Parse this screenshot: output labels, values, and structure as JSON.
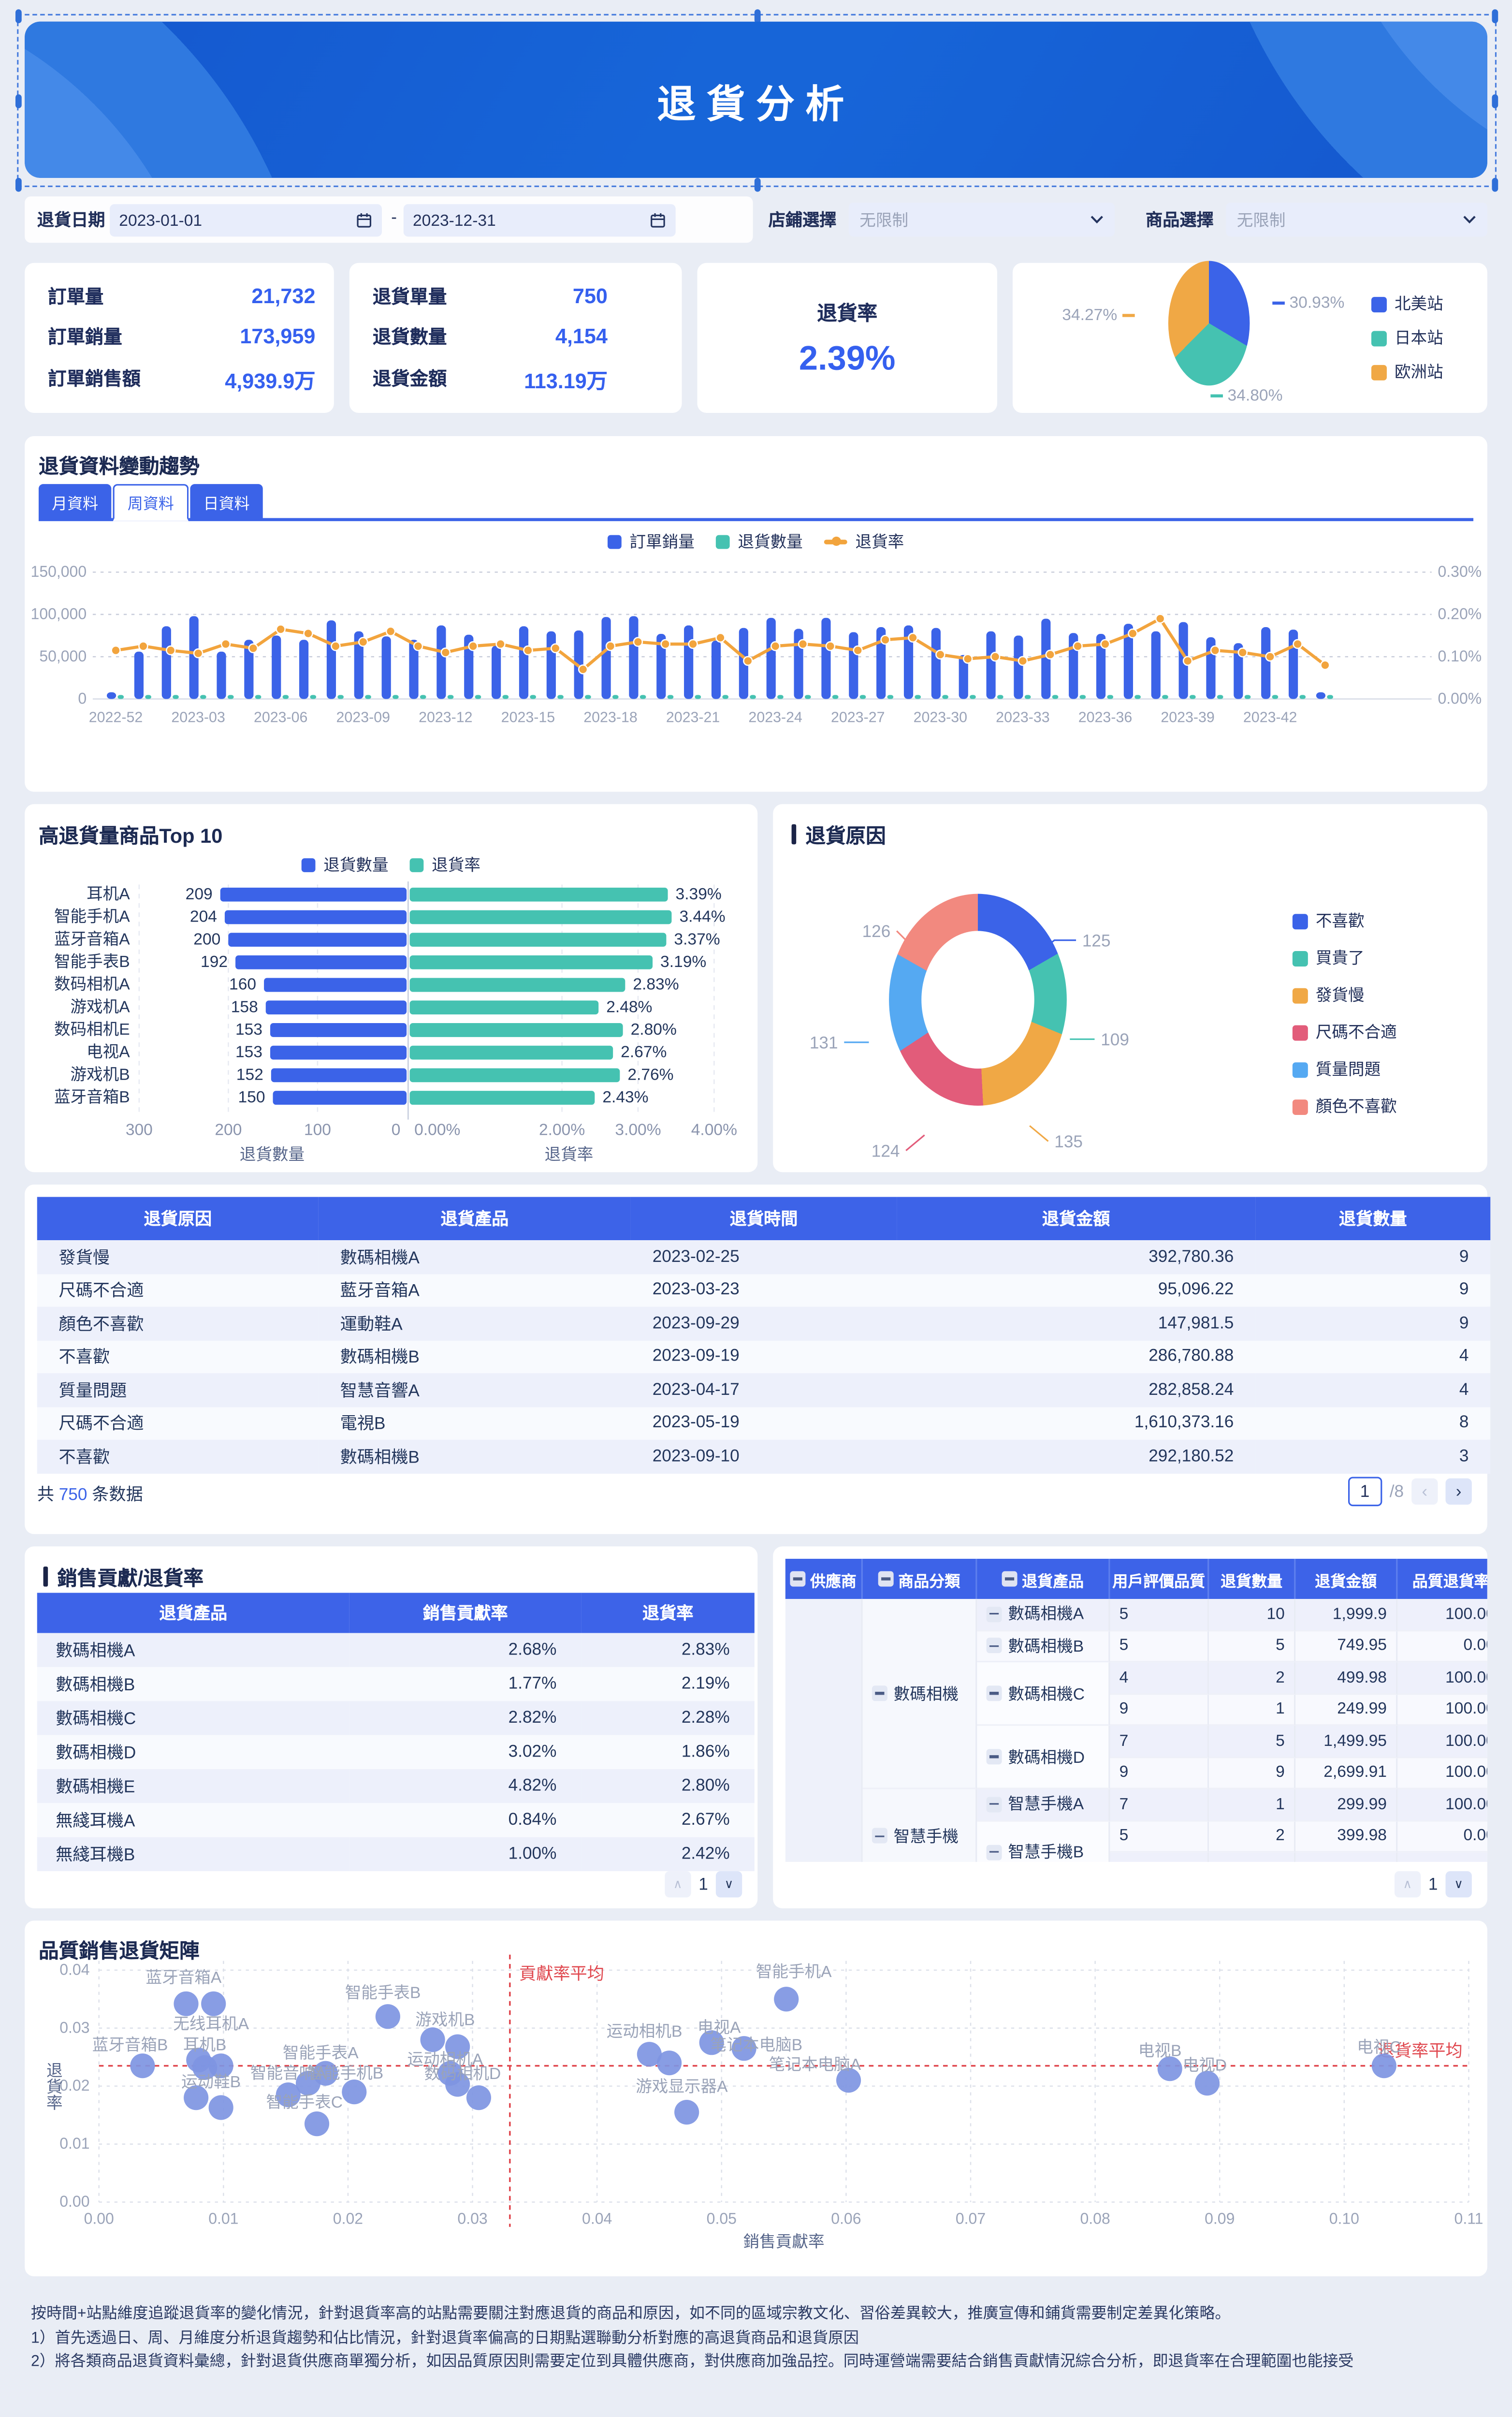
{
  "header": {
    "title": "退貨分析"
  },
  "filters": {
    "date_label": "退貨日期",
    "date_start": "2023-01-01",
    "date_end": "2023-12-31",
    "range_separator": "-",
    "store_label": "店鋪選擇",
    "store_value": "无限制",
    "product_label": "商品選擇",
    "product_value": "无限制"
  },
  "kpi_orders": {
    "rows": [
      {
        "label": "訂單量",
        "value": "21,732"
      },
      {
        "label": "訂單銷量",
        "value": "173,959"
      },
      {
        "label": "訂單銷售額",
        "value": "4,939.9万"
      }
    ]
  },
  "kpi_returns": {
    "rows": [
      {
        "label": "退貨單量",
        "value": "750"
      },
      {
        "label": "退貨數量",
        "value": "4,154"
      },
      {
        "label": "退貨金額",
        "value": "113.19万"
      }
    ]
  },
  "kpi_rate": {
    "label": "退貨率",
    "value": "2.39%"
  },
  "chart_data": [
    {
      "id": "station-pie",
      "type": "pie",
      "labels": [
        "北美站",
        "日本站",
        "欧洲站"
      ],
      "values": [
        30.93,
        34.8,
        34.27
      ],
      "value_labels": [
        "30.93%",
        "34.80%",
        "34.27%"
      ],
      "colors": [
        "#3b63e8",
        "#45c2b1",
        "#f0a845"
      ],
      "legend_position": "right"
    },
    {
      "id": "trend",
      "type": "bar+line",
      "title": "退貨資料變動趨勢",
      "tabs": [
        "月資料",
        "周資料",
        "日資料"
      ],
      "active_tab": "周資料",
      "x": [
        "2022-52",
        "2023-01",
        "2023-02",
        "2023-03",
        "2023-04",
        "2023-05",
        "2023-06",
        "2023-07",
        "2023-08",
        "2023-09",
        "2023-10",
        "2023-11",
        "2023-12",
        "2023-13",
        "2023-14",
        "2023-15",
        "2023-16",
        "2023-17",
        "2023-18",
        "2023-19",
        "2023-20",
        "2023-21",
        "2023-22",
        "2023-23",
        "2023-24",
        "2023-25",
        "2023-26",
        "2023-27",
        "2023-28",
        "2023-29",
        "2023-30",
        "2023-31",
        "2023-32",
        "2023-33",
        "2023-34",
        "2023-35",
        "2023-36",
        "2023-37",
        "2023-38",
        "2023-39",
        "2023-40",
        "2023-41",
        "2023-42",
        "2023-43",
        "2023-44"
      ],
      "tick_every": 3,
      "series": [
        {
          "name": "訂單銷量",
          "type": "bar",
          "color": "#3b63e8",
          "values": [
            8000,
            56000,
            86000,
            98000,
            56000,
            70000,
            75000,
            70000,
            93000,
            80000,
            74000,
            70000,
            87000,
            76000,
            63000,
            86000,
            80000,
            81000,
            97000,
            98000,
            77000,
            87000,
            69000,
            84000,
            96000,
            83000,
            96000,
            79000,
            85000,
            87000,
            84000,
            52000,
            80000,
            75000,
            95000,
            78000,
            77000,
            89000,
            80000,
            91000,
            73000,
            66000,
            85000,
            82000,
            8000
          ]
        },
        {
          "name": "退貨數量",
          "type": "bar",
          "color": "#45c2b1",
          "values": [
            200,
            1900,
            2300,
            2600,
            1500,
            2000,
            2200,
            1900,
            2500,
            2100,
            2000,
            1800,
            2300,
            2000,
            1700,
            2300,
            2100,
            1400,
            2400,
            2600,
            2000,
            2300,
            2400,
            1800,
            2500,
            2200,
            2500,
            2100,
            2300,
            2300,
            2200,
            1400,
            2100,
            2000,
            2500,
            2100,
            2000,
            2400,
            2900,
            1600,
            1900,
            1700,
            1700,
            2300,
            200
          ]
        },
        {
          "name": "退貨率",
          "type": "line",
          "color": "#f2a43d",
          "values": [
            0.115,
            0.125,
            0.115,
            0.108,
            0.13,
            0.12,
            0.165,
            0.155,
            0.125,
            0.135,
            0.16,
            0.125,
            0.11,
            0.125,
            0.13,
            0.115,
            0.12,
            0.07,
            0.125,
            0.135,
            0.13,
            0.13,
            0.145,
            0.09,
            0.125,
            0.13,
            0.125,
            0.115,
            0.14,
            0.145,
            0.105,
            0.095,
            0.1,
            0.09,
            0.105,
            0.125,
            0.13,
            0.155,
            0.19,
            0.09,
            0.115,
            0.11,
            0.1,
            0.13,
            0.08
          ]
        }
      ],
      "y_left": {
        "ticks": [
          "0",
          "50,000",
          "100,000",
          "150,000"
        ],
        "max": 150000
      },
      "y_right": {
        "ticks": [
          "0.00%",
          "0.10%",
          "0.20%",
          "0.30%"
        ],
        "max": 0.3
      }
    },
    {
      "id": "top10",
      "type": "bar",
      "title": "高退貨量商品Top 10",
      "legend": [
        "退貨數量",
        "退貨率"
      ],
      "categories": [
        "耳机A",
        "智能手机A",
        "蓝牙音箱A",
        "智能手表B",
        "数码相机A",
        "游戏机A",
        "数码相机E",
        "电视A",
        "游戏机B",
        "蓝牙音箱B"
      ],
      "qty": [
        209,
        204,
        200,
        192,
        160,
        158,
        153,
        153,
        152,
        150
      ],
      "rate": [
        3.39,
        3.44,
        3.37,
        3.19,
        2.83,
        2.48,
        2.8,
        2.67,
        2.76,
        2.43
      ],
      "rate_labels": [
        "3.39%",
        "3.44%",
        "3.37%",
        "3.19%",
        "2.83%",
        "2.48%",
        "2.80%",
        "2.67%",
        "2.76%",
        "2.43%"
      ],
      "left_axis": {
        "label": "退貨數量",
        "ticks": [
          "300",
          "200",
          "100",
          "0"
        ],
        "max": 300
      },
      "right_axis": {
        "label": "退貨率",
        "ticks": [
          "0.00%",
          "2.00%",
          "3.00%",
          "4.00%"
        ],
        "tick_values": [
          0,
          2,
          3,
          4
        ],
        "max": 4
      },
      "colors": {
        "qty": "#3b63e8",
        "rate": "#45c2b1"
      }
    },
    {
      "id": "reasons",
      "type": "pie",
      "title": "退貨原因",
      "labels": [
        "不喜歡",
        "買貴了",
        "發貨慢",
        "尺碼不合適",
        "質量問題",
        "顏色不喜歡"
      ],
      "values": [
        125,
        109,
        135,
        124,
        131,
        126
      ],
      "value_labels": [
        "125",
        "109",
        "135",
        "124",
        "131",
        "126"
      ],
      "colors": [
        "#3b63e8",
        "#45c2b1",
        "#f0a845",
        "#e25c7a",
        "#55a9f2",
        "#f2897f"
      ],
      "donut": true,
      "legend_position": "right"
    },
    {
      "id": "matrix",
      "type": "scatter",
      "title": "品質銷售退貨矩陣",
      "xlabel": "銷售貢獻率",
      "ylabel": "退貨率",
      "x_ticks": [
        "0.00",
        "0.01",
        "0.02",
        "0.03",
        "0.04",
        "0.05",
        "0.06",
        "0.07",
        "0.08",
        "0.09",
        "0.10",
        "0.11"
      ],
      "y_ticks": [
        "0.00",
        "0.01",
        "0.02",
        "0.03",
        "0.04"
      ],
      "avg_x": {
        "value": 0.033,
        "label": "貢獻率平均"
      },
      "avg_y": {
        "value": 0.0235,
        "label": "退貨率平均"
      },
      "dot_color": "#7e95e2",
      "avg_line_color": "#e0484f",
      "points": [
        {
          "x": 0.0035,
          "y": 0.0235
        },
        {
          "x": 0.008,
          "y": 0.0245
        },
        {
          "x": 0.0085,
          "y": 0.0232
        },
        {
          "x": 0.0098,
          "y": 0.0235
        },
        {
          "x": 0.007,
          "y": 0.0342
        },
        {
          "x": 0.0092,
          "y": 0.0342
        },
        {
          "x": 0.0078,
          "y": 0.018
        },
        {
          "x": 0.0098,
          "y": 0.0163
        },
        {
          "x": 0.0152,
          "y": 0.0185
        },
        {
          "x": 0.0175,
          "y": 0.0135
        },
        {
          "x": 0.0168,
          "y": 0.0205
        },
        {
          "x": 0.0182,
          "y": 0.0222
        },
        {
          "x": 0.0205,
          "y": 0.019
        },
        {
          "x": 0.0232,
          "y": 0.032
        },
        {
          "x": 0.0268,
          "y": 0.028
        },
        {
          "x": 0.0288,
          "y": 0.0268
        },
        {
          "x": 0.0282,
          "y": 0.0222
        },
        {
          "x": 0.0288,
          "y": 0.0203
        },
        {
          "x": 0.0305,
          "y": 0.018
        },
        {
          "x": 0.0442,
          "y": 0.0255
        },
        {
          "x": 0.0458,
          "y": 0.024
        },
        {
          "x": 0.0492,
          "y": 0.0275
        },
        {
          "x": 0.0518,
          "y": 0.0265
        },
        {
          "x": 0.0472,
          "y": 0.0155
        },
        {
          "x": 0.0552,
          "y": 0.035
        },
        {
          "x": 0.0602,
          "y": 0.021
        },
        {
          "x": 0.086,
          "y": 0.023
        },
        {
          "x": 0.089,
          "y": 0.0205
        },
        {
          "x": 0.1032,
          "y": 0.0235
        }
      ],
      "point_labels": [
        {
          "t": "蓝牙音箱A",
          "x": 0.0068,
          "y": 0.0378
        },
        {
          "t": "无线耳机A",
          "x": 0.009,
          "y": 0.0298
        },
        {
          "t": "蓝牙音箱B",
          "x": 0.0025,
          "y": 0.0262
        },
        {
          "t": "耳机B",
          "x": 0.0085,
          "y": 0.0262
        },
        {
          "t": "运动鞋B",
          "x": 0.009,
          "y": 0.0198
        },
        {
          "t": "智能手表C",
          "x": 0.0165,
          "y": 0.0163
        },
        {
          "t": "智能音响A",
          "x": 0.0152,
          "y": 0.0213
        },
        {
          "t": "智能手机B",
          "x": 0.0198,
          "y": 0.0213
        },
        {
          "t": "智能手表A",
          "x": 0.0178,
          "y": 0.0248
        },
        {
          "t": "智能手表B",
          "x": 0.0228,
          "y": 0.0352
        },
        {
          "t": "游戏机B",
          "x": 0.0278,
          "y": 0.0305
        },
        {
          "t": "运动相机A",
          "x": 0.0278,
          "y": 0.0237
        },
        {
          "t": "数码相机D",
          "x": 0.0292,
          "y": 0.0212
        },
        {
          "t": "运动相机B",
          "x": 0.0438,
          "y": 0.0285
        },
        {
          "t": "电视A",
          "x": 0.0498,
          "y": 0.0292
        },
        {
          "t": "笔记本电脑B",
          "x": 0.0528,
          "y": 0.0262
        },
        {
          "t": "笔记本电脑A",
          "x": 0.0575,
          "y": 0.0228
        },
        {
          "t": "游戏显示器A",
          "x": 0.0468,
          "y": 0.019
        },
        {
          "t": "智能手机A",
          "x": 0.0558,
          "y": 0.0388
        },
        {
          "t": "电视B",
          "x": 0.0852,
          "y": 0.0252
        },
        {
          "t": "电视D",
          "x": 0.0888,
          "y": 0.0227
        },
        {
          "t": "电视C",
          "x": 0.1028,
          "y": 0.0258
        }
      ]
    }
  ],
  "detail_table": {
    "columns": [
      "退貨原因",
      "退貨產品",
      "退貨時間",
      "退貨金額",
      "退貨數量"
    ],
    "rows": [
      [
        "發貨慢",
        "數碼相機A",
        "2023-02-25",
        "392,780.36",
        "9"
      ],
      [
        "尺碼不合適",
        "藍牙音箱A",
        "2023-03-23",
        "95,096.22",
        "9"
      ],
      [
        "顏色不喜歡",
        "運動鞋A",
        "2023-09-29",
        "147,981.5",
        "9"
      ],
      [
        "不喜歡",
        "數碼相機B",
        "2023-09-19",
        "286,780.88",
        "4"
      ],
      [
        "質量問題",
        "智慧音響A",
        "2023-04-17",
        "282,858.24",
        "4"
      ],
      [
        "尺碼不合適",
        "電視B",
        "2023-05-19",
        "1,610,373.16",
        "8"
      ],
      [
        "不喜歡",
        "數碼相機B",
        "2023-09-10",
        "292,180.52",
        "3"
      ]
    ],
    "summary_prefix": "共",
    "summary_count": "750",
    "summary_suffix": "条数据",
    "page_value": "1",
    "page_total": "/8"
  },
  "contribution_table": {
    "title": "銷售貢獻/退貨率",
    "columns": [
      "退貨產品",
      "銷售貢獻率",
      "退貨率"
    ],
    "rows": [
      [
        "數碼相機A",
        "2.68%",
        "2.83%"
      ],
      [
        "數碼相機B",
        "1.77%",
        "2.19%"
      ],
      [
        "數碼相機C",
        "2.82%",
        "2.28%"
      ],
      [
        "數碼相機D",
        "3.02%",
        "1.86%"
      ],
      [
        "數碼相機E",
        "4.82%",
        "2.80%"
      ],
      [
        "無綫耳機A",
        "0.84%",
        "2.67%"
      ],
      [
        "無綫耳機B",
        "1.00%",
        "2.42%"
      ]
    ],
    "page_value": "1"
  },
  "supplier_table": {
    "columns": [
      "供應商",
      "商品分類",
      "退貨產品",
      "用戶評價品質",
      "退貨數量",
      "退貨金額",
      "品質退貨率"
    ],
    "collapsible_columns": [
      0,
      1,
      2
    ],
    "groups": [
      {
        "category": "數碼相機",
        "products": [
          {
            "name": "數碼相機A",
            "rows": [
              [
                "5",
                "10",
                "1,999.9",
                "100.00"
              ]
            ]
          },
          {
            "name": "數碼相機B",
            "rows": [
              [
                "5",
                "5",
                "749.95",
                "0.00"
              ]
            ]
          },
          {
            "name": "數碼相機C",
            "rows": [
              [
                "4",
                "2",
                "499.98",
                "100.00"
              ],
              [
                "9",
                "1",
                "249.99",
                "100.00"
              ]
            ]
          },
          {
            "name": "數碼相機D",
            "rows": [
              [
                "7",
                "5",
                "1,499.95",
                "100.00"
              ],
              [
                "9",
                "9",
                "2,699.91",
                "100.00"
              ]
            ]
          }
        ]
      },
      {
        "category": "智慧手機",
        "products": [
          {
            "name": "智慧手機A",
            "rows": [
              [
                "7",
                "1",
                "299.99",
                "100.00"
              ]
            ]
          },
          {
            "name": "智慧手機B",
            "rows": [
              [
                "5",
                "2",
                "399.98",
                "0.00"
              ],
              [
                "",
                "",
                "",
                ""
              ]
            ]
          }
        ]
      }
    ],
    "page_value": "1"
  },
  "footnote": {
    "lines": [
      "按時間+站點維度追蹤退貨率的變化情況，針對退貨率高的站點需要關注對應退貨的商品和原因，如不同的區域宗教文化、習俗差異較大，推廣宣傳和鋪貨需要制定差異化策略。",
      "1）首先透過日、周、月維度分析退貨趨勢和佔比情況，針對退貨率偏高的日期點選聯動分析對應的高退貨商品和退貨原因",
      "2）將各類商品退貨資料彙總，針對退貨供應商單獨分析，如因品質原因則需要定位到具體供應商，對供應商加強品控。同時運營端需要結合銷售貢獻情況綜合分析，即退貨率在合理範圍也能接受"
    ]
  }
}
